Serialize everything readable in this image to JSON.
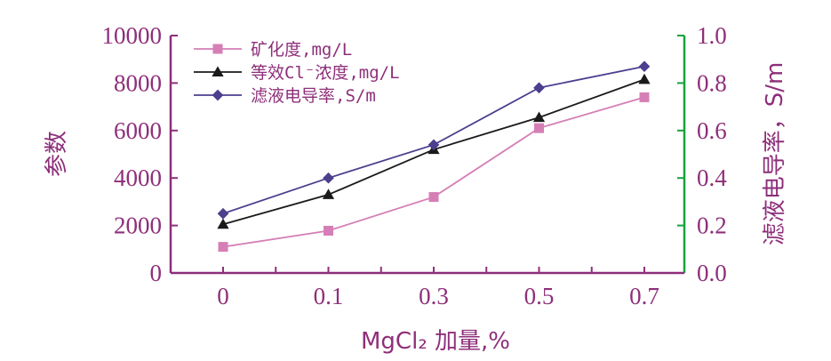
{
  "chart_data": {
    "type": "line",
    "categories": [
      "0",
      "0.1",
      "0.3",
      "0.5",
      "0.7"
    ],
    "xlabel": "MgCl₂ 加量,%",
    "ylabel_left": "参数",
    "ylabel_right": "滤液电导率，S/m",
    "ylim_left": [
      0,
      10000
    ],
    "yticks_left": [
      "0",
      "2000",
      "4000",
      "6000",
      "8000",
      "10000"
    ],
    "ylim_right": [
      0,
      1.0
    ],
    "yticks_right": [
      "0.0",
      "0.2",
      "0.4",
      "0.6",
      "0.8",
      "1.0"
    ],
    "legend_position": "top-left",
    "grid": false,
    "series": [
      {
        "name": "矿化度,mg/L",
        "axis": "left",
        "marker": "square",
        "color": "#d57fb6",
        "values": [
          1100,
          1780,
          3200,
          6100,
          7400
        ]
      },
      {
        "name": "等效Cl⁻浓度,mg/L",
        "axis": "left",
        "marker": "triangle",
        "color": "#1a1a1a",
        "values": [
          2050,
          3300,
          5200,
          6550,
          8150
        ]
      },
      {
        "name": "滤液电导率,S/m",
        "axis": "right",
        "marker": "diamond",
        "color": "#4b3f8e",
        "values": [
          0.25,
          0.4,
          0.54,
          0.78,
          0.87
        ]
      }
    ],
    "colors": {
      "left_axis": "#8e2f7a",
      "right_axis": "#17a33b",
      "text": "#8e2f7a"
    }
  }
}
